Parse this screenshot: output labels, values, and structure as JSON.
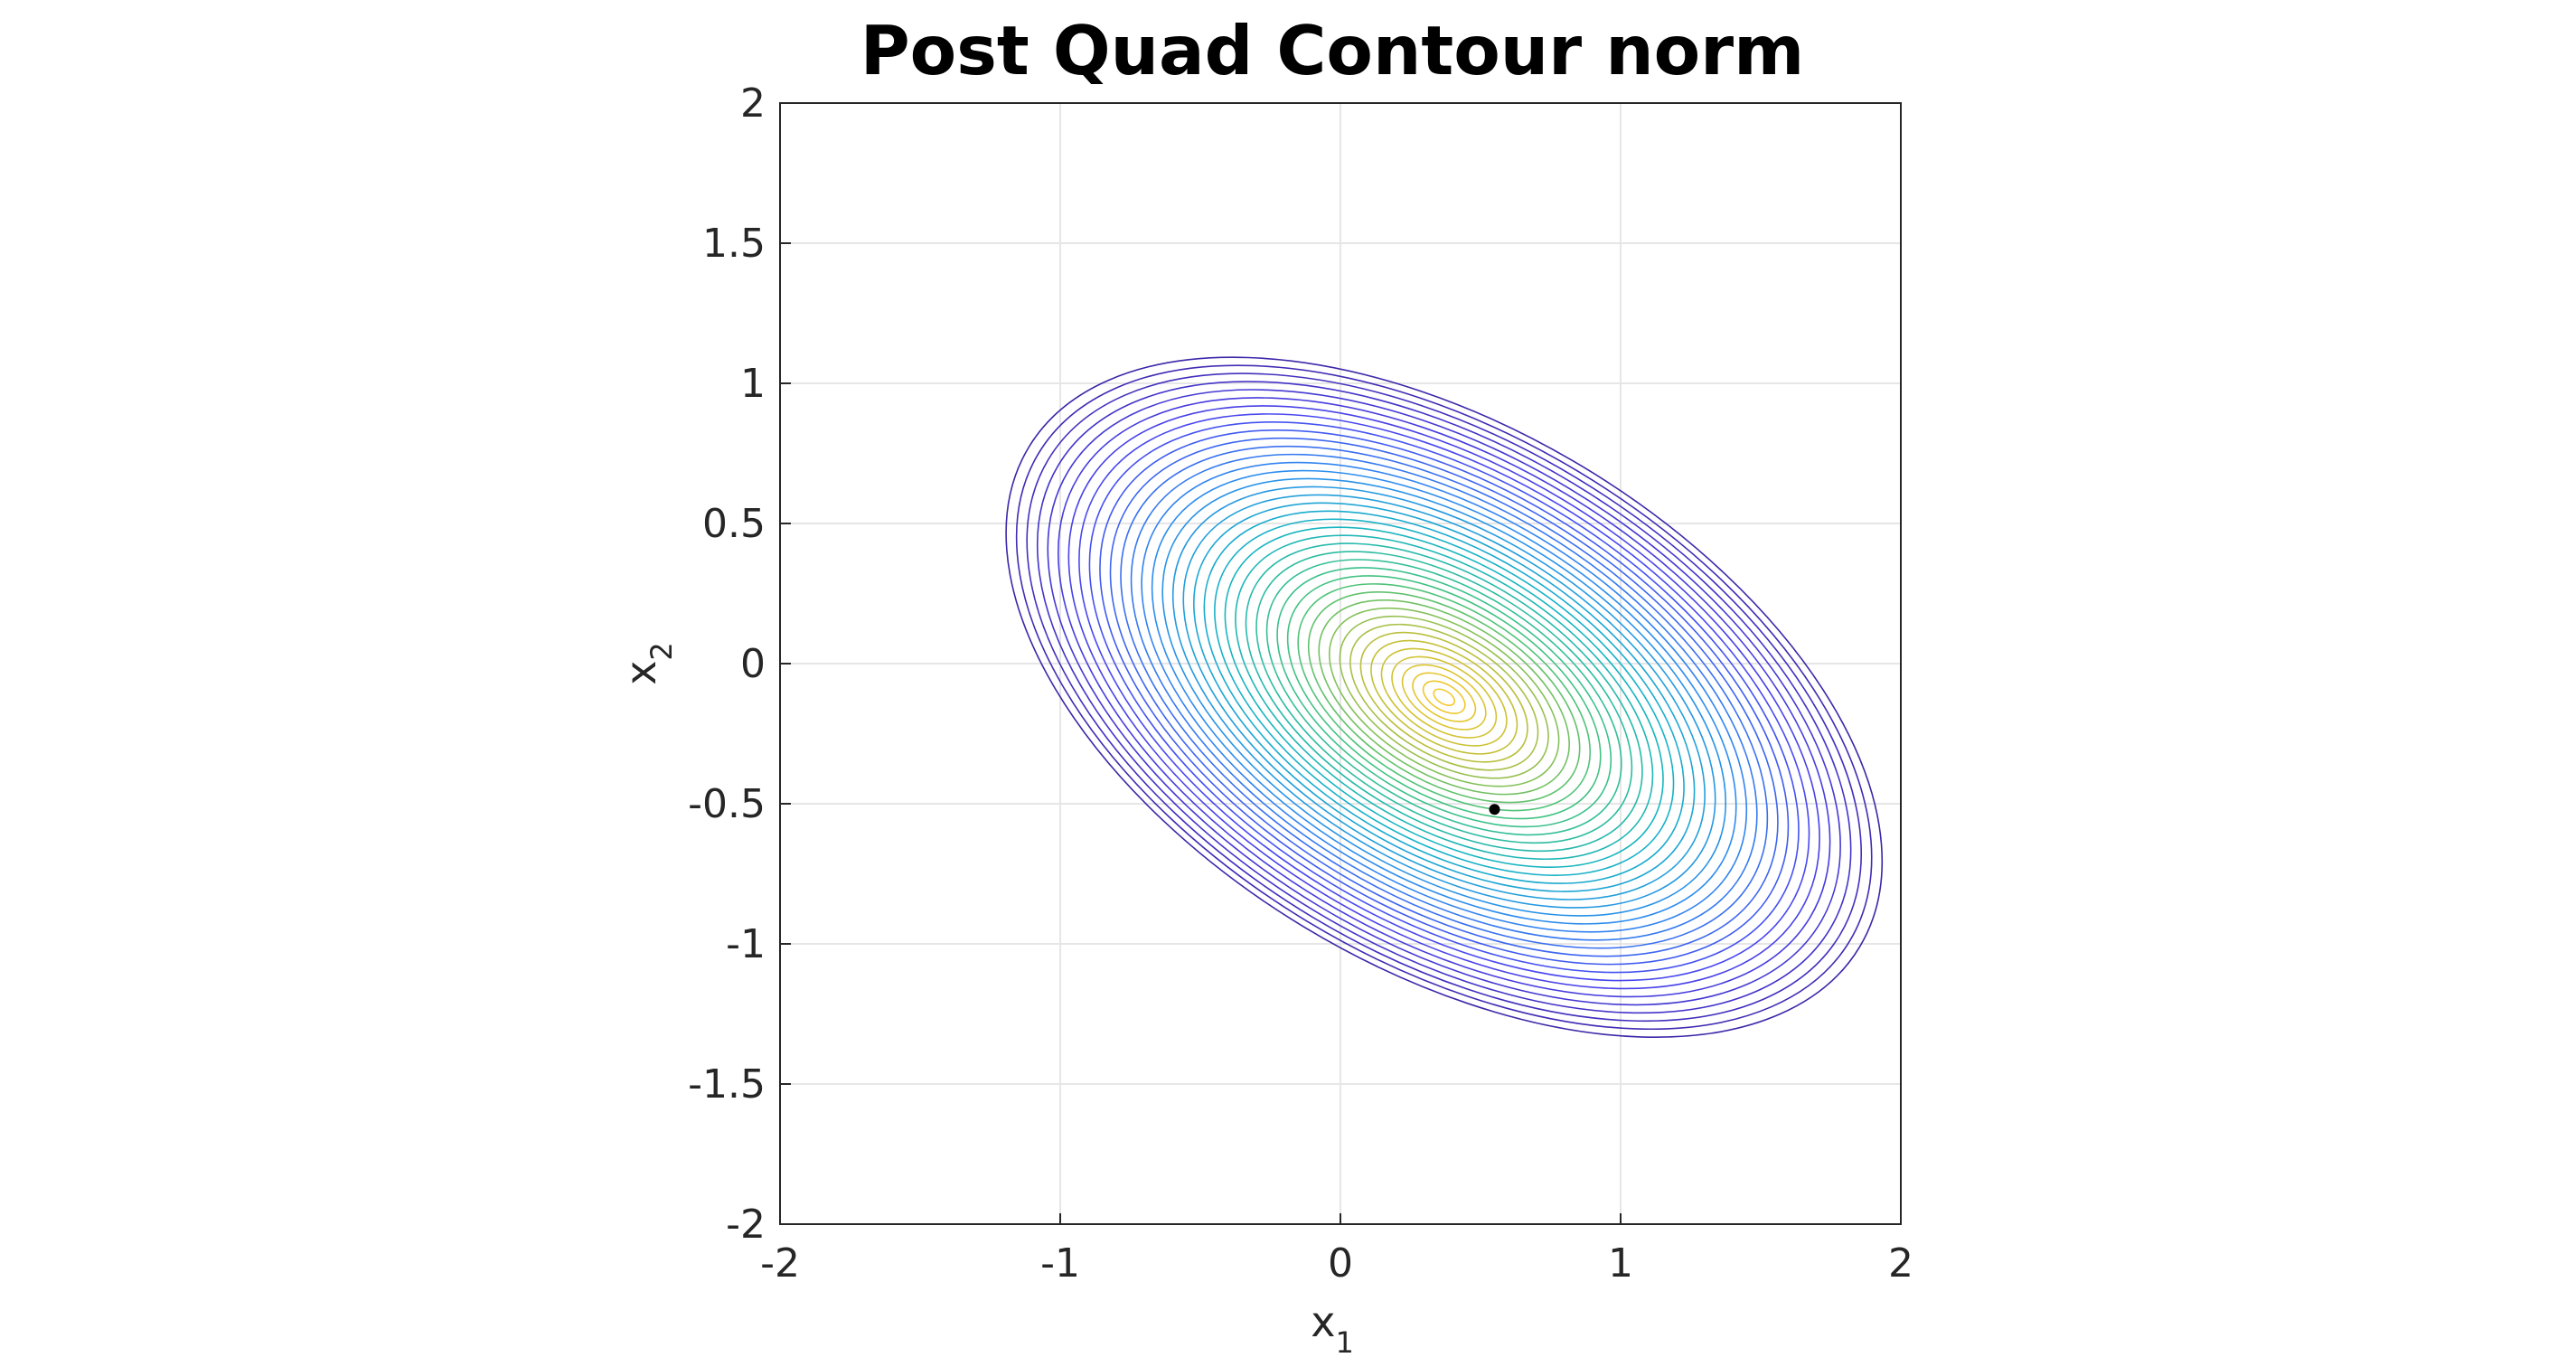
{
  "chart_data": {
    "type": "contour",
    "title": "Post Quad Contour norm",
    "xlabel": {
      "base": "x",
      "sub": "1"
    },
    "ylabel": {
      "base": "x",
      "sub": "2"
    },
    "xlim": [
      -2,
      2
    ],
    "ylim": [
      -2,
      2
    ],
    "xticks": [
      -2,
      -1,
      0,
      1,
      2
    ],
    "yticks": [
      -2,
      -1.5,
      -1,
      -0.5,
      0,
      0.5,
      1,
      1.5,
      2
    ],
    "xtick_labels": [
      "-2",
      "-1",
      "0",
      "1",
      "2"
    ],
    "ytick_labels": [
      "-2",
      "-1.5",
      "-1",
      "-0.5",
      "0",
      "0.5",
      "1",
      "1.5",
      "2"
    ],
    "grid": true,
    "colormap": [
      "#3e26a8",
      "#4a46f0",
      "#2f8bf0",
      "#16b4c4",
      "#44c37f",
      "#bdbf3a",
      "#f5c92b"
    ],
    "contours": {
      "center": [
        0.37,
        -0.12
      ],
      "angle_deg": -31,
      "levels": 42,
      "outer_semi_major": 1.73,
      "outer_semi_minor": 0.96
    },
    "points": [
      {
        "x": 0.55,
        "y": -0.52,
        "color": "#000000"
      }
    ]
  }
}
